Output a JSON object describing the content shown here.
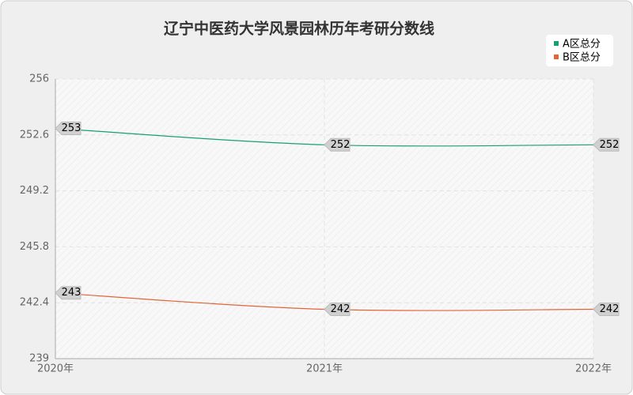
{
  "chart_data": {
    "type": "line",
    "title": "辽宁中医药大学风景园林历年考研分数线",
    "categories": [
      "2020年",
      "2021年",
      "2022年"
    ],
    "series": [
      {
        "name": "A区总分",
        "color": "#1a9e77",
        "values": [
          253,
          252,
          252
        ]
      },
      {
        "name": "B区总分",
        "color": "#e0663a",
        "values": [
          243,
          242,
          242
        ]
      }
    ],
    "ylim": [
      239,
      256
    ],
    "yticks": [
      239,
      242.4,
      245.8,
      249.2,
      252.6,
      256
    ],
    "grid": true,
    "legend": "top-right"
  }
}
